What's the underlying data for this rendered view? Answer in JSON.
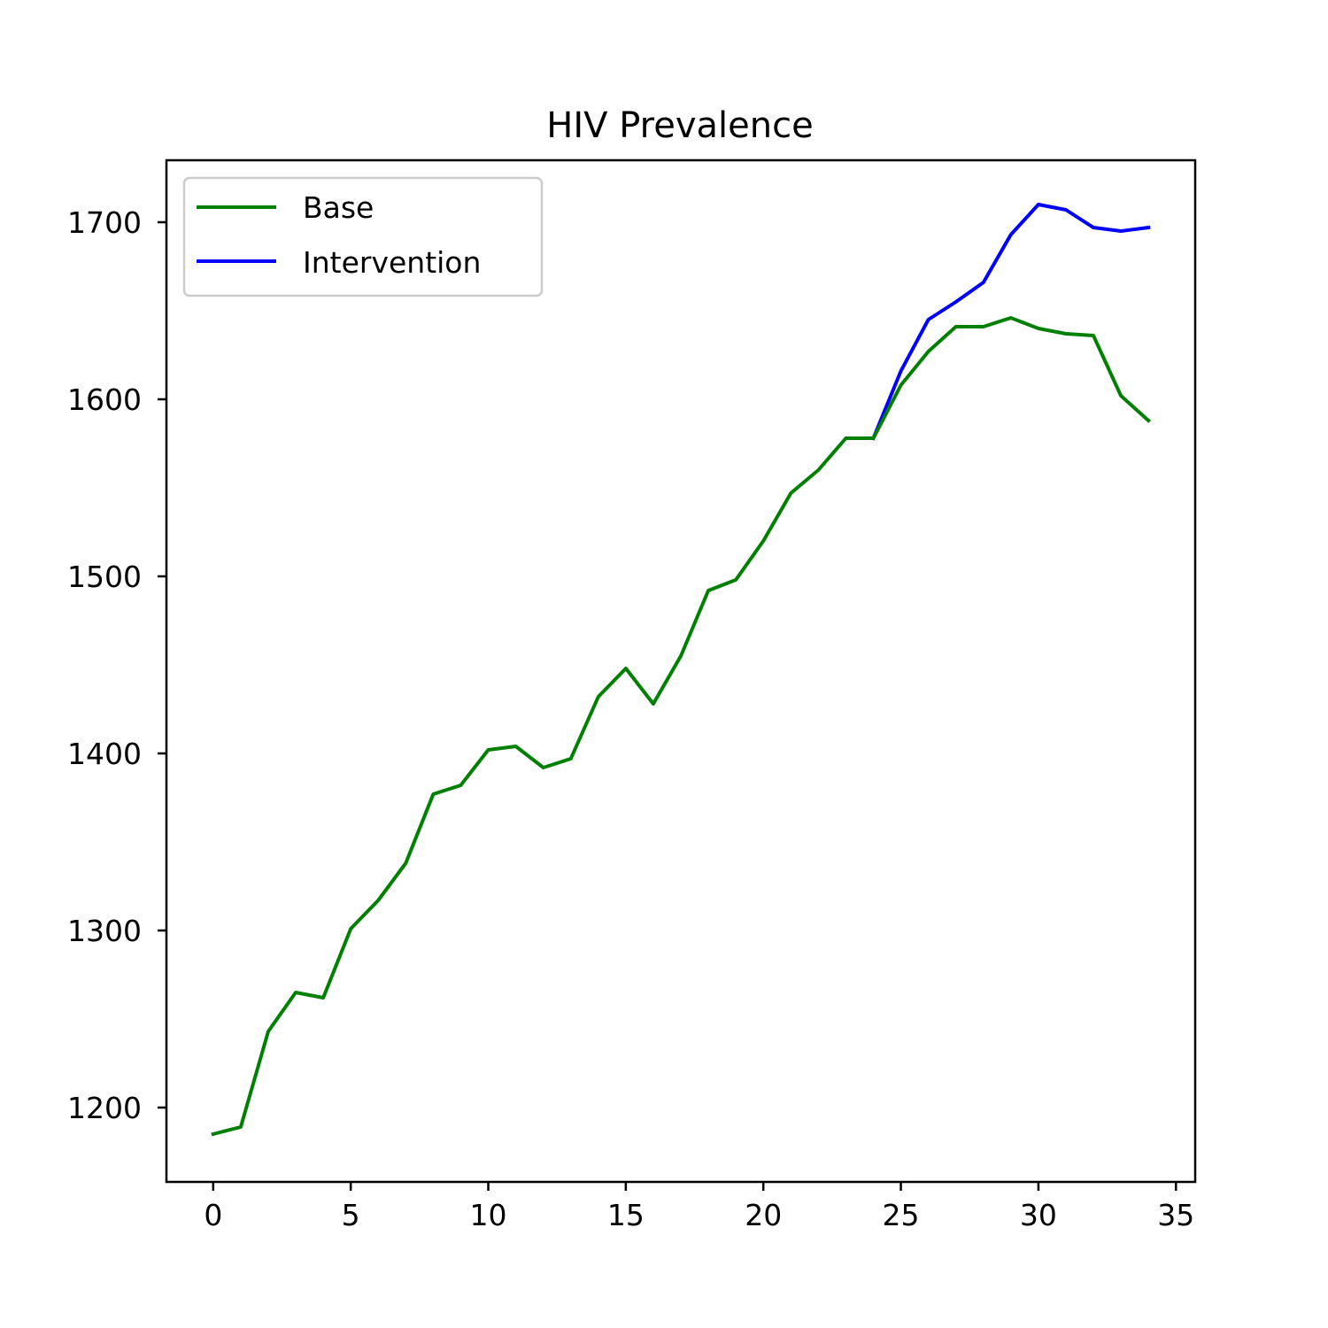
{
  "chart_data": {
    "type": "line",
    "title": "HIV Prevalence",
    "xlabel": "",
    "ylabel": "",
    "xlim": [
      -1.7,
      35.7
    ],
    "ylim": [
      1158,
      1735
    ],
    "xticks": [
      0,
      5,
      10,
      15,
      20,
      25,
      30,
      35
    ],
    "yticks": [
      1200,
      1300,
      1400,
      1500,
      1600,
      1700
    ],
    "grid": false,
    "legend_position": "upper-left",
    "series": [
      {
        "name": "Intervention",
        "color": "#0000ff",
        "x": [
          24,
          25,
          26,
          27,
          28,
          29,
          30,
          31,
          32,
          33,
          34
        ],
        "y": [
          1578,
          1616,
          1645,
          1655,
          1666,
          1693,
          1710,
          1707,
          1697,
          1695,
          1697
        ]
      },
      {
        "name": "Base",
        "color": "#008000",
        "x": [
          0,
          1,
          2,
          3,
          4,
          5,
          6,
          7,
          8,
          9,
          10,
          11,
          12,
          13,
          14,
          15,
          16,
          17,
          18,
          19,
          20,
          21,
          22,
          23,
          24,
          25,
          26,
          27,
          28,
          29,
          30,
          31,
          32,
          33,
          34
        ],
        "y": [
          1185,
          1189,
          1243,
          1265,
          1262,
          1301,
          1317,
          1338,
          1377,
          1382,
          1402,
          1404,
          1392,
          1397,
          1432,
          1448,
          1428,
          1455,
          1492,
          1498,
          1520,
          1547,
          1560,
          1578,
          1578,
          1608,
          1627,
          1641,
          1641,
          1646,
          1640,
          1637,
          1636,
          1602,
          1588
        ]
      }
    ],
    "legend": [
      "Base",
      "Intervention"
    ]
  }
}
